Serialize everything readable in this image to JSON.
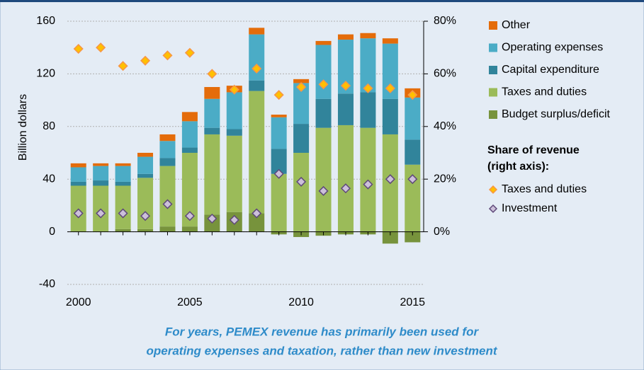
{
  "chart_data": {
    "type": "bar",
    "y_label": "Billion dollars",
    "x": [
      2000,
      2001,
      2002,
      2003,
      2004,
      2005,
      2006,
      2007,
      2008,
      2009,
      2010,
      2011,
      2012,
      2013,
      2014,
      2015
    ],
    "xlim": [
      1999.5,
      2015.5
    ],
    "xticks": [
      2000,
      2005,
      2010,
      2015
    ],
    "ylim": [
      -40,
      160
    ],
    "yticks": [
      -40,
      0,
      40,
      80,
      120,
      160
    ],
    "y2lim": [
      -20,
      80
    ],
    "y2ticks": [
      {
        "value": 0,
        "label": "0%"
      },
      {
        "value": 20,
        "label": "20%"
      },
      {
        "value": 40,
        "label": "40%"
      },
      {
        "value": 60,
        "label": "60%"
      },
      {
        "value": 80,
        "label": "80%"
      }
    ],
    "grid": true,
    "series": [
      {
        "name": "Budget surplus/deficit",
        "color": "#77933c",
        "values": [
          0,
          0,
          2,
          2,
          4,
          4,
          13,
          15,
          14,
          -2,
          -4,
          -3,
          -2,
          -2,
          -9,
          -8
        ]
      },
      {
        "name": "Taxes and duties",
        "color": "#9bbb59",
        "values": [
          35,
          35,
          33,
          39,
          46,
          56,
          61,
          58,
          93,
          44,
          60,
          79,
          81,
          79,
          74,
          51
        ]
      },
      {
        "name": "Capital expenditure",
        "color": "#31849b",
        "values": [
          3,
          4,
          3,
          3,
          6,
          4,
          5,
          5,
          8,
          19,
          22,
          22,
          24,
          27,
          27,
          19
        ]
      },
      {
        "name": "Operating expenses",
        "color": "#4bacc6",
        "values": [
          11,
          11,
          12,
          13,
          13,
          20,
          22,
          28,
          35,
          24,
          31,
          41,
          41,
          41,
          42,
          32
        ]
      },
      {
        "name": "Other",
        "color": "#e46c0a",
        "values": [
          3,
          2,
          2,
          3,
          5,
          7,
          9,
          5,
          5,
          2,
          3,
          3,
          4,
          4,
          4,
          7
        ]
      },
      {
        "name": "Taxes and duties",
        "type": "scatter",
        "axis": "y2",
        "color": "#ffc000",
        "edgecolor": "#f79646",
        "values": [
          69.5,
          70,
          63,
          65,
          67,
          68,
          60,
          54,
          62,
          52,
          55,
          56,
          55.5,
          54.5,
          54.5,
          52
        ]
      },
      {
        "name": "Investment",
        "type": "scatter",
        "axis": "y2",
        "color": "#ccc0da",
        "edgecolor": "#5f497a",
        "values": [
          7,
          7,
          7,
          6,
          10.5,
          6,
          5,
          4.5,
          7,
          22,
          19,
          15.5,
          16.5,
          18,
          20,
          20
        ]
      }
    ],
    "legend_header": [
      "Share of revenue",
      "(right axis):"
    ],
    "caption": [
      "For years, PEMEX revenue has primarily been used for",
      "operating expenses and taxation, rather than new investment"
    ]
  }
}
